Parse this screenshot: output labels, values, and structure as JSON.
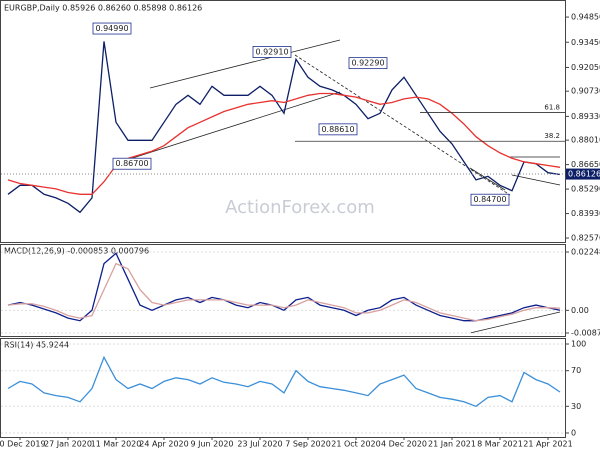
{
  "chart_data": [
    {
      "type": "line",
      "title": "EURGBP,Daily  0.85926 0.86260 0.85898 0.86126",
      "series": [
        {
          "name": "EURGBP",
          "color": "#0d1f66",
          "values": [
            0.85,
            0.855,
            0.855,
            0.85,
            0.848,
            0.845,
            0.84,
            0.848,
            0.935,
            0.89,
            0.88,
            0.88,
            0.88,
            0.89,
            0.9,
            0.905,
            0.9,
            0.91,
            0.905,
            0.905,
            0.905,
            0.91,
            0.905,
            0.895,
            0.925,
            0.915,
            0.91,
            0.908,
            0.905,
            0.9,
            0.892,
            0.895,
            0.908,
            0.915,
            0.905,
            0.895,
            0.885,
            0.878,
            0.868,
            0.858,
            0.86,
            0.855,
            0.852,
            0.868,
            0.867,
            0.862,
            0.861
          ]
        },
        {
          "name": "MA",
          "color": "#e8322f",
          "values": [
            0.858,
            0.856,
            0.855,
            0.854,
            0.853,
            0.851,
            0.85,
            0.85,
            0.857,
            0.866,
            0.87,
            0.872,
            0.874,
            0.877,
            0.882,
            0.887,
            0.89,
            0.893,
            0.896,
            0.898,
            0.9,
            0.901,
            0.902,
            0.901,
            0.903,
            0.905,
            0.906,
            0.906,
            0.905,
            0.904,
            0.902,
            0.9,
            0.901,
            0.903,
            0.904,
            0.903,
            0.9,
            0.895,
            0.889,
            0.882,
            0.877,
            0.873,
            0.87,
            0.868,
            0.867,
            0.866,
            0.865
          ]
        }
      ],
      "ylim": [
        0.8235,
        0.9552
      ],
      "yticks": [
        {
          "value": 0.9485,
          "label": "0.94850"
        },
        {
          "value": 0.9345,
          "label": "0.93450"
        },
        {
          "value": 0.9205,
          "label": "0.92050"
        },
        {
          "value": 0.9073,
          "label": "0.90730"
        },
        {
          "value": 0.8933,
          "label": "0.89330"
        },
        {
          "value": 0.8801,
          "label": "0.88010"
        },
        {
          "value": 0.8665,
          "label": "0.86650"
        },
        {
          "value": 0.8529,
          "label": "0.85290"
        },
        {
          "value": 0.8393,
          "label": "0.83930"
        },
        {
          "value": 0.8257,
          "label": "0.82570"
        }
      ],
      "annotations": [
        {
          "label": "0.94990",
          "value": 0.9499
        },
        {
          "label": "0.92910",
          "value": 0.9291
        },
        {
          "label": "0.92290",
          "value": 0.9229
        },
        {
          "label": "0.88610",
          "value": 0.8861
        },
        {
          "label": "0.86700",
          "value": 0.867
        },
        {
          "label": "0.84700",
          "value": 0.847
        }
      ],
      "levels": [
        {
          "label": "61.8",
          "value": 0.8955
        },
        {
          "label": "38.2",
          "value": 0.8795
        }
      ],
      "last_price": {
        "label": "0.86126",
        "value": 0.86126
      },
      "watermark": "ActionForex.com"
    },
    {
      "type": "line",
      "title": "MACD(12,26,9) -0.000853 0.000796",
      "series": [
        {
          "name": "MACD",
          "color": "#0d1f8c",
          "values": [
            0.002,
            0.003,
            0.002,
            0.0005,
            -0.001,
            -0.003,
            -0.004,
            0.0,
            0.018,
            0.022,
            0.012,
            0.002,
            0.0,
            0.002,
            0.004,
            0.005,
            0.003,
            0.005,
            0.004,
            0.002,
            0.001,
            0.003,
            0.002,
            0.0,
            0.004,
            0.005,
            0.002,
            0.001,
            0.0,
            -0.002,
            0.0,
            0.001,
            0.004,
            0.005,
            0.002,
            0.0,
            -0.002,
            -0.003,
            -0.004,
            -0.004,
            -0.003,
            -0.002,
            -0.001,
            0.001,
            0.002,
            0.001,
            0.0
          ]
        },
        {
          "name": "Signal",
          "color": "#d9a0a0",
          "values": [
            0.002,
            0.0025,
            0.0025,
            0.0015,
            0.0,
            -0.002,
            -0.003,
            -0.002,
            0.008,
            0.018,
            0.016,
            0.008,
            0.003,
            0.002,
            0.003,
            0.004,
            0.004,
            0.004,
            0.004,
            0.003,
            0.002,
            0.002,
            0.002,
            0.001,
            0.002,
            0.004,
            0.003,
            0.002,
            0.001,
            -0.001,
            -0.001,
            0.0,
            0.002,
            0.004,
            0.003,
            0.001,
            -0.001,
            -0.002,
            -0.003,
            -0.004,
            -0.0035,
            -0.0025,
            -0.0015,
            0.0,
            0.001,
            0.001,
            0.0008
          ]
        }
      ],
      "ylim": [
        -0.0099,
        0.0248
      ],
      "yticks": [
        0.022482,
        {
          "value": 0,
          "label": "0.00"
        },
        -0.008736
      ]
    },
    {
      "type": "line",
      "title": "RSI(14) 45.9244",
      "categories": [
        null,
        "10 Dec 2019",
        null,
        null,
        null,
        "27 Jan 2020",
        null,
        null,
        null,
        "11 Mar 2020",
        null,
        null,
        null,
        "24 Apr 2020",
        null,
        null,
        null,
        "9 Jun 2020",
        null,
        null,
        null,
        "23 Jul 2020",
        null,
        null,
        null,
        "7 Sep 2020",
        null,
        null,
        null,
        "21 Oct 2020",
        null,
        null,
        null,
        "4 Dec 2020",
        null,
        null,
        null,
        "21 Jan 2021",
        null,
        null,
        null,
        "8 Mar 2021",
        null,
        null,
        null,
        "21 Apr 2021",
        null
      ],
      "series": [
        {
          "name": "RSI",
          "color": "#3b8fd9",
          "values": [
            50,
            58,
            55,
            45,
            42,
            40,
            35,
            50,
            85,
            60,
            50,
            55,
            50,
            58,
            62,
            60,
            55,
            62,
            57,
            55,
            52,
            58,
            55,
            45,
            70,
            58,
            52,
            50,
            48,
            45,
            42,
            55,
            60,
            65,
            50,
            45,
            40,
            38,
            35,
            30,
            40,
            42,
            35,
            68,
            60,
            55,
            46
          ]
        }
      ],
      "ylim": [
        -3.4,
        104.5
      ],
      "yticks": [
        100,
        70,
        30,
        0
      ]
    }
  ]
}
